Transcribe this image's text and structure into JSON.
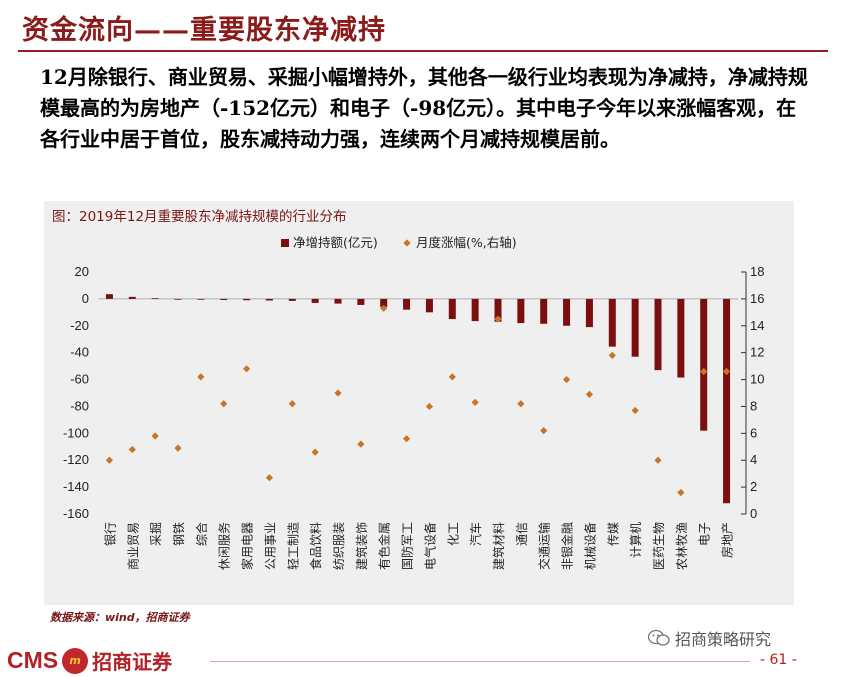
{
  "slide": {
    "title": "资金流向——重要股东净减持",
    "intro": "12月除银行、商业贸易、采掘小幅增持外，其他各一级行业均表现为净减持，净减持规模最高的为房地产（-152亿元）和电子（-98亿元）。其中电子今年以来涨幅客观，在各行业中居于首位，股东减持动力强，连续两个月减持规模居前。",
    "source": "数据来源：wind，招商证券",
    "watermark": "招商策略研究",
    "page_number": "- 61 -",
    "logo_text": "CMS",
    "logo_cn": "招商证券"
  },
  "colors": {
    "title": "#8b1a1a",
    "bar": "#7b0f0f",
    "dot": "#c8742a",
    "chart_bg": "#efefef"
  },
  "chart_data": {
    "type": "bar",
    "title": "图：2019年12月重要股东净减持规模的行业分布",
    "legend_position": "top",
    "categories": [
      "银行",
      "商业贸易",
      "采掘",
      "钢铁",
      "综合",
      "休闲服务",
      "家用电器",
      "公用事业",
      "轻工制造",
      "食品饮料",
      "纺织服装",
      "建筑装饰",
      "有色金属",
      "国防军工",
      "电气设备",
      "化工",
      "汽车",
      "建筑材料",
      "通信",
      "交通运输",
      "非银金融",
      "机械设备",
      "传媒",
      "计算机",
      "医药生物",
      "农林牧渔",
      "电子",
      "房地产"
    ],
    "series": [
      {
        "name": "净增持额(亿元)",
        "type": "bar",
        "axis": "left",
        "values": [
          3.5,
          1.5,
          0.5,
          -0.3,
          -0.5,
          -0.8,
          -1.0,
          -1.2,
          -1.5,
          -3.0,
          -3.5,
          -4.5,
          -6.0,
          -8.0,
          -10.0,
          -15.0,
          -16.5,
          -17.0,
          -18.0,
          -18.5,
          -20.0,
          -21.0,
          -35.5,
          -43.0,
          -53.0,
          -58.5,
          -98.0,
          -152.0
        ]
      },
      {
        "name": "月度涨幅(%,右轴)",
        "type": "scatter",
        "axis": "right",
        "values": [
          4.0,
          4.8,
          5.8,
          4.9,
          10.2,
          8.2,
          10.8,
          2.7,
          8.2,
          4.6,
          9.0,
          5.2,
          15.3,
          5.6,
          8.0,
          10.2,
          8.3,
          14.5,
          8.2,
          6.2,
          10.0,
          8.9,
          11.8,
          7.7,
          4.0,
          1.6,
          10.6,
          10.6
        ]
      }
    ],
    "y_left": {
      "min": -160,
      "max": 20,
      "ticks": [
        20,
        0,
        -20,
        -40,
        -60,
        -80,
        -100,
        -120,
        -140,
        -160
      ]
    },
    "y_right": {
      "min": 0,
      "max": 18,
      "ticks": [
        18,
        16,
        14,
        12,
        10,
        8,
        6,
        4,
        2,
        0
      ]
    }
  }
}
